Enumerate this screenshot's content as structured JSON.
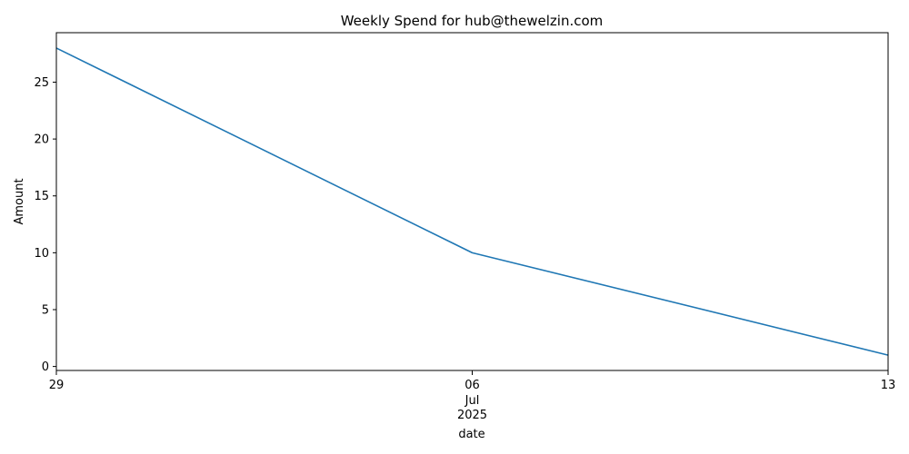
{
  "chart_data": {
    "type": "line",
    "title": "Weekly Spend for hub@thewelzin.com",
    "xlabel": "date",
    "ylabel": "Amount",
    "x": [
      "2025-06-29",
      "2025-07-06",
      "2025-07-13"
    ],
    "x_tick_labels": [
      {
        "day": "29",
        "month": "",
        "year": ""
      },
      {
        "day": "06",
        "month": "Jul",
        "year": "2025"
      },
      {
        "day": "13",
        "month": "",
        "year": ""
      }
    ],
    "series": [
      {
        "values": [
          28,
          10,
          1
        ],
        "color": "#1f77b4"
      }
    ],
    "ylim": [
      -0.35,
      29.35
    ],
    "yticks": [
      0,
      5,
      10,
      15,
      20,
      25
    ],
    "grid": false,
    "legend": "none"
  }
}
